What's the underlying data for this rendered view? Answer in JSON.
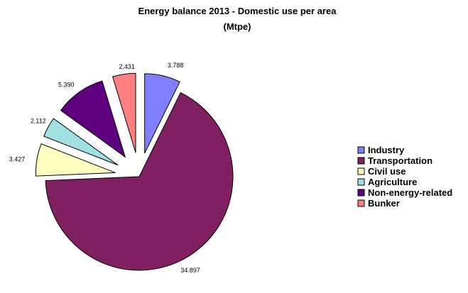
{
  "chart_data": {
    "type": "pie",
    "title_line1": "Energy balance 2013 - Domestic use per area",
    "title_line2": "(Mtpe)",
    "categories": [
      "Industry",
      "Transportation",
      "Civil use",
      "Agriculture",
      "Non-energy-related",
      "Bunker"
    ],
    "values": [
      3.788,
      34.897,
      3.427,
      2.112,
      5.39,
      2.431
    ],
    "value_labels": [
      "3.788",
      "34.897",
      "3.427",
      "2.112",
      "5.390",
      "2.431"
    ],
    "colors": [
      "#8080ff",
      "#802060",
      "#ffffc0",
      "#a0e0e0",
      "#600080",
      "#ff8080"
    ],
    "exploded": true,
    "legend_position": "right"
  }
}
